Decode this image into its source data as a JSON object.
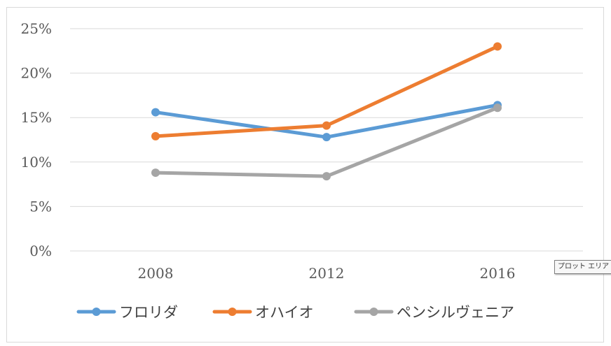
{
  "chart_data": {
    "type": "line",
    "title": "",
    "xlabel": "",
    "ylabel": "",
    "categories": [
      "2008",
      "2012",
      "2016"
    ],
    "ylim": [
      0,
      25
    ],
    "y_ticks": [
      "0%",
      "5%",
      "10%",
      "15%",
      "20%",
      "25%"
    ],
    "y_tick_values": [
      0,
      5,
      10,
      15,
      20,
      25
    ],
    "y_unit": "%",
    "grid": true,
    "legend_position": "bottom",
    "series": [
      {
        "name": "フロリダ",
        "color": "#5b9bd5",
        "values": [
          15.6,
          12.8,
          16.4
        ]
      },
      {
        "name": "オハイオ",
        "color": "#ed7d31",
        "values": [
          12.9,
          14.1,
          23.0
        ]
      },
      {
        "name": "ペンシルヴェニア",
        "color": "#a5a5a5",
        "values": [
          8.8,
          8.4,
          16.1
        ]
      }
    ]
  },
  "tooltip": {
    "text": "プロット エリア"
  }
}
